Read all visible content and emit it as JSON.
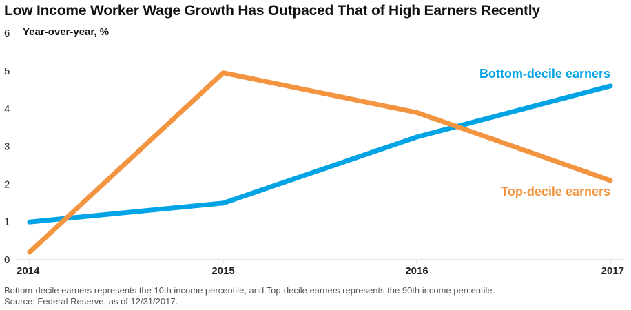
{
  "chart_data": {
    "type": "line",
    "title": "Low Income Worker Wage Growth Has Outpaced That of High Earners Recently",
    "ylabel": "Year-over-year, %",
    "xlabel": "",
    "x": [
      "2014",
      "2015",
      "2016",
      "2017"
    ],
    "ylim": [
      0,
      6
    ],
    "yticks": [
      "0",
      "1",
      "2",
      "3",
      "4",
      "5",
      "6"
    ],
    "grid": false,
    "series": [
      {
        "name": "Bottom-decile earners",
        "color": "#00a3e4",
        "values": [
          1.0,
          1.5,
          3.25,
          4.6
        ]
      },
      {
        "name": "Top-decile earners",
        "color": "#f29440",
        "values": [
          0.2,
          4.95,
          3.9,
          2.1
        ]
      }
    ],
    "annotations": [
      "Bottom-decile earners",
      "Top-decile earners"
    ],
    "footnote": [
      "Bottom-decile earners represents the 10th income percentile, and Top-decile earners represents the 90th income percentile.",
      "Source: Federal Reserve, as of 12/31/2017."
    ]
  }
}
